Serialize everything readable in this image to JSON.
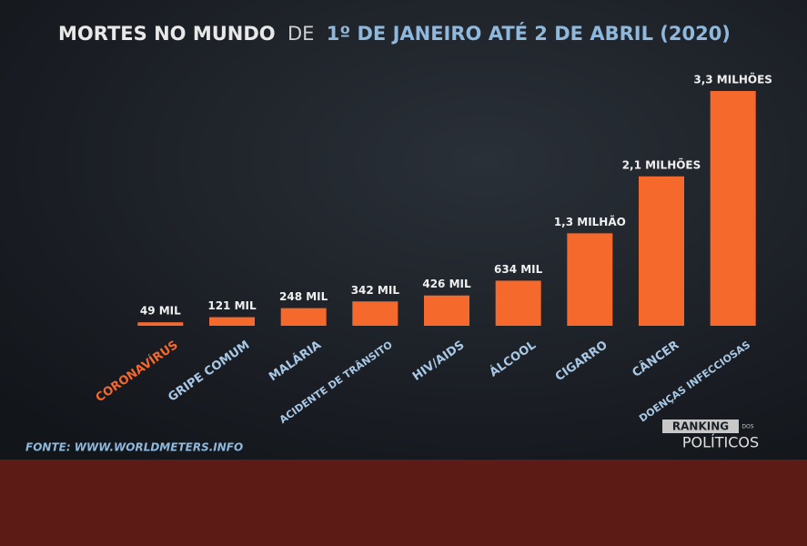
{
  "chart_data": {
    "type": "bar",
    "title": "MORTES NO MUNDO",
    "title_joiner": "DE",
    "subtitle": "1º DE JANEIRO ATÉ 2 DE ABRIL (2020)",
    "categories": [
      "CORONAVÍRUS",
      "GRIPE COMUM",
      "MALÁRIA",
      "ACIDENTE DE TRÂNSITO",
      "HIV/AIDS",
      "ÁLCOOL",
      "CIGARRO",
      "CÂNCER",
      "DOENÇAS INFECCIOSAS"
    ],
    "values": [
      49000,
      121000,
      248000,
      342000,
      426000,
      634000,
      1300000,
      2100000,
      3300000
    ],
    "value_labels": [
      "49 MIL",
      "121 MIL",
      "248 MIL",
      "342 MIL",
      "426 MIL",
      "634 MIL",
      "1,3 MILHÃO",
      "2,1 MILHÕES",
      "3,3 MILHÕES"
    ],
    "color": "#f5692c",
    "source": "FONTE: WWW.WORLDMETERS.INFO",
    "logo": {
      "top": "RANKING",
      "small": "DOS",
      "bottom": "POLÍTICOS"
    }
  }
}
